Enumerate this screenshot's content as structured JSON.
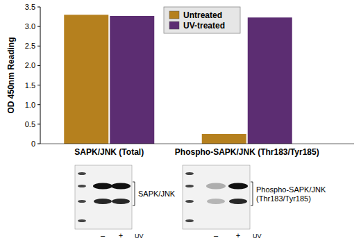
{
  "chart_data": {
    "type": "bar",
    "y_label": "OD 450nm Reading",
    "categories": [
      "SAPK/JNK (Total)",
      "Phospho-SAPK/JNK (Thr183/Tyr185)"
    ],
    "series": [
      {
        "name": "Untreated",
        "color": "#b5801e",
        "values": [
          3.3,
          0.25
        ]
      },
      {
        "name": "UV-treated",
        "color": "#5c2d72",
        "values": [
          3.27,
          3.23
        ]
      }
    ],
    "ylim": [
      0,
      3.5
    ],
    "yticks": [
      0,
      0.5,
      {
        "value": 1,
        "label": "1.0"
      },
      1.5,
      {
        "value": 2,
        "label": "2.0"
      },
      2.5,
      {
        "value": 3,
        "label": "3.0"
      },
      3.5
    ],
    "legend": "top",
    "grid": false
  },
  "blots": [
    {
      "label_lines": [
        "SAPK/JNK"
      ],
      "lanes": [
        "–",
        "+"
      ],
      "treatment": "UV"
    },
    {
      "label_lines": [
        "Phospho-SAPK/JNK",
        "(Thr183/Tyr185)"
      ],
      "lanes": [
        "–",
        "+"
      ],
      "treatment": "UV"
    }
  ]
}
